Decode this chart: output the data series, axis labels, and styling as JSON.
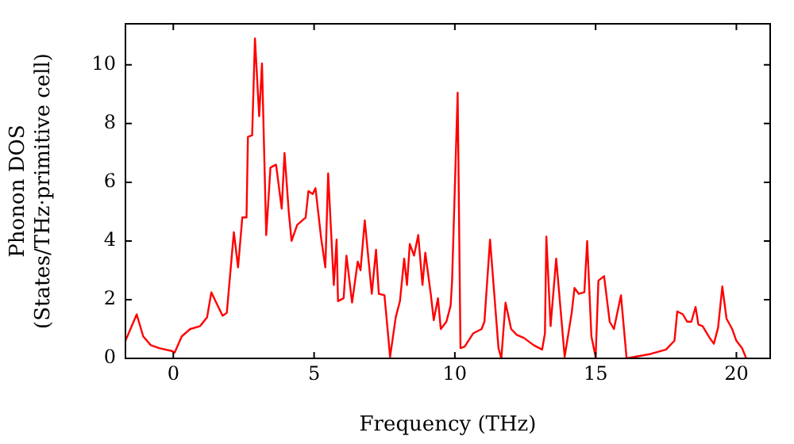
{
  "chart_data": {
    "type": "line",
    "xlabel": "Frequency (THz)",
    "ylabel": "Phonon DOS\n(States/THz·primitive cell)",
    "xlim": [
      -1.7,
      21.2
    ],
    "ylim": [
      0,
      11.4
    ],
    "xticks": [
      0,
      5,
      10,
      15,
      20
    ],
    "yticks": [
      0,
      2,
      4,
      6,
      8,
      10
    ],
    "grid": false,
    "legend": false,
    "marker": "none",
    "line_style": "solid",
    "series": [
      {
        "color": "#ff0000",
        "x": [
          -1.7,
          -1.3,
          -1.07,
          -0.8,
          -0.5,
          -0.05,
          0.05,
          0.3,
          0.6,
          0.95,
          1.2,
          1.35,
          1.75,
          1.9,
          2.15,
          2.3,
          2.45,
          2.6,
          2.65,
          2.8,
          2.9,
          3.05,
          3.15,
          3.3,
          3.45,
          3.65,
          3.85,
          3.95,
          4.1,
          4.2,
          4.4,
          4.7,
          4.8,
          4.95,
          5.05,
          5.25,
          5.4,
          5.5,
          5.7,
          5.8,
          5.85,
          6.05,
          6.15,
          6.35,
          6.55,
          6.65,
          6.8,
          7.05,
          7.2,
          7.3,
          7.5,
          7.7,
          7.9,
          8.05,
          8.2,
          8.3,
          8.4,
          8.55,
          8.7,
          8.85,
          8.95,
          9.15,
          9.25,
          9.4,
          9.5,
          9.7,
          9.85,
          9.9,
          10.1,
          10.2,
          10.35,
          10.65,
          10.95,
          11.05,
          11.25,
          11.55,
          11.65,
          11.8,
          12.0,
          12.2,
          12.45,
          12.8,
          13.1,
          13.2,
          13.25,
          13.4,
          13.6,
          13.9,
          14.15,
          14.25,
          14.4,
          14.6,
          14.7,
          14.85,
          15.0,
          15.1,
          15.3,
          15.5,
          15.65,
          15.9,
          16.1,
          16.95,
          17.5,
          17.8,
          17.9,
          18.1,
          18.25,
          18.4,
          18.55,
          18.65,
          18.8,
          19.05,
          19.2,
          19.35,
          19.5,
          19.65,
          19.85,
          20.0,
          20.2,
          20.35
        ],
        "values": [
          0.6,
          1.5,
          0.75,
          0.45,
          0.35,
          0.25,
          0.2,
          0.75,
          1.0,
          1.1,
          1.4,
          2.25,
          1.45,
          1.55,
          4.3,
          3.1,
          4.8,
          4.8,
          7.55,
          7.6,
          10.9,
          8.25,
          10.05,
          4.2,
          6.5,
          6.6,
          5.1,
          7.0,
          5.0,
          4.0,
          4.55,
          4.8,
          5.7,
          5.6,
          5.8,
          4.1,
          3.1,
          6.3,
          2.5,
          4.05,
          1.95,
          2.05,
          3.5,
          1.9,
          3.3,
          3.0,
          4.7,
          2.2,
          3.7,
          2.2,
          2.15,
          0.05,
          1.4,
          1.95,
          3.4,
          2.5,
          3.9,
          3.5,
          4.2,
          2.5,
          3.6,
          2.15,
          1.3,
          2.05,
          1.0,
          1.25,
          1.8,
          2.6,
          9.05,
          0.35,
          0.4,
          0.85,
          1.0,
          1.25,
          4.05,
          0.35,
          0,
          1.9,
          1.0,
          0.8,
          0.7,
          0.45,
          0.3,
          0.85,
          4.15,
          1.1,
          3.4,
          0.05,
          1.55,
          2.4,
          2.2,
          2.25,
          4.0,
          0.75,
          0.05,
          2.65,
          2.8,
          1.25,
          1.0,
          2.15,
          0,
          0.15,
          0.3,
          0.6,
          1.6,
          1.5,
          1.25,
          1.25,
          1.75,
          1.15,
          1.1,
          0.7,
          0.5,
          1.05,
          2.45,
          1.35,
          1.0,
          0.6,
          0.35,
          0
        ]
      }
    ]
  }
}
